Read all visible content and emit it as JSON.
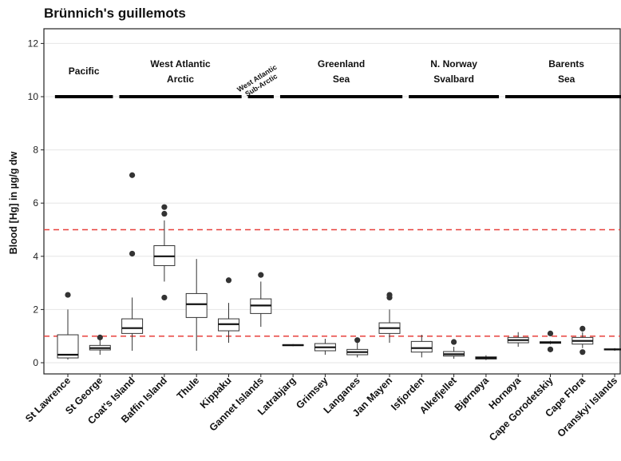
{
  "chart_data": {
    "type": "boxplot",
    "title": "Brünnich's guillemots",
    "xlabel": "",
    "ylabel": "Blood [Hg] in µg/g dw",
    "ylim": [
      -0.4,
      12.5
    ],
    "yticks": [
      0,
      2,
      4,
      6,
      8,
      10,
      12
    ],
    "grid": true,
    "reference_lines": [
      {
        "y": 5,
        "style": "dashed",
        "color": "#e8413c"
      },
      {
        "y": 1,
        "style": "dashed",
        "color": "#e8413c"
      }
    ],
    "regions": [
      {
        "lines": [
          "Pacific"
        ],
        "from": 0,
        "to": 1
      },
      {
        "lines": [
          "West Atlantic",
          "Arctic"
        ],
        "from": 2,
        "to": 5
      },
      {
        "lines": [
          "West Atlantic",
          "Sub-Arctic"
        ],
        "from": 6,
        "to": 6
      },
      {
        "lines": [
          "Greenland",
          "Sea"
        ],
        "from": 7,
        "to": 10
      },
      {
        "lines": [
          "N. Norway",
          "Svalbard"
        ],
        "from": 11,
        "to": 13
      },
      {
        "lines": [
          "Barents",
          "Sea"
        ],
        "from": 14,
        "to": 17
      }
    ],
    "categories": [
      "St Lawrence",
      "St George",
      "Coat's Island",
      "Baffin Island",
      "Thule",
      "Kippaku",
      "Gannet Islands",
      "Latrabjarg",
      "Grimsey",
      "Langanes",
      "Jan Mayen",
      "Isfjorden",
      "Alkefjellet",
      "Bjørnøya",
      "Hornøya",
      "Cape Gorodetskiy",
      "Cape Flora",
      "Oranskyi Islands"
    ],
    "boxes": [
      {
        "min": 0.12,
        "q1": 0.18,
        "median": 0.3,
        "q3": 1.05,
        "max": 2.0,
        "outliers": [
          2.55
        ]
      },
      {
        "min": 0.3,
        "q1": 0.48,
        "median": 0.55,
        "q3": 0.65,
        "max": 0.85,
        "outliers": [
          0.95
        ]
      },
      {
        "min": 0.45,
        "q1": 1.1,
        "median": 1.3,
        "q3": 1.65,
        "max": 2.45,
        "outliers": [
          4.1,
          7.05
        ]
      },
      {
        "min": 3.05,
        "q1": 3.65,
        "median": 4.0,
        "q3": 4.4,
        "max": 5.35,
        "outliers": [
          2.45,
          5.6,
          5.85
        ]
      },
      {
        "min": 0.45,
        "q1": 1.7,
        "median": 2.2,
        "q3": 2.6,
        "max": 3.9,
        "outliers": []
      },
      {
        "min": 0.75,
        "q1": 1.2,
        "median": 1.45,
        "q3": 1.65,
        "max": 2.25,
        "outliers": [
          3.1
        ]
      },
      {
        "min": 1.35,
        "q1": 1.85,
        "median": 2.15,
        "q3": 2.4,
        "max": 3.05,
        "outliers": [
          3.3
        ]
      },
      {
        "min": 0.62,
        "q1": 0.64,
        "median": 0.66,
        "q3": 0.68,
        "max": 0.7,
        "outliers": []
      },
      {
        "min": 0.3,
        "q1": 0.45,
        "median": 0.58,
        "q3": 0.72,
        "max": 0.9,
        "outliers": []
      },
      {
        "min": 0.2,
        "q1": 0.3,
        "median": 0.4,
        "q3": 0.5,
        "max": 0.75,
        "outliers": [
          0.85
        ]
      },
      {
        "min": 0.75,
        "q1": 1.1,
        "median": 1.3,
        "q3": 1.5,
        "max": 2.0,
        "outliers": [
          2.45,
          2.55
        ]
      },
      {
        "min": 0.2,
        "q1": 0.4,
        "median": 0.55,
        "q3": 0.8,
        "max": 1.05,
        "outliers": []
      },
      {
        "min": 0.15,
        "q1": 0.25,
        "median": 0.32,
        "q3": 0.42,
        "max": 0.6,
        "outliers": [
          0.78
        ]
      },
      {
        "min": 0.1,
        "q1": 0.14,
        "median": 0.18,
        "q3": 0.22,
        "max": 0.28,
        "outliers": []
      },
      {
        "min": 0.6,
        "q1": 0.75,
        "median": 0.85,
        "q3": 0.95,
        "max": 1.15,
        "outliers": []
      },
      {
        "min": 0.7,
        "q1": 0.73,
        "median": 0.76,
        "q3": 0.79,
        "max": 0.82,
        "outliers": [
          0.5,
          1.1
        ]
      },
      {
        "min": 0.55,
        "q1": 0.7,
        "median": 0.82,
        "q3": 0.95,
        "max": 1.15,
        "outliers": [
          0.4,
          1.28
        ]
      },
      {
        "min": 0.45,
        "q1": 0.48,
        "median": 0.5,
        "q3": 0.52,
        "max": 0.55,
        "outliers": []
      }
    ]
  }
}
